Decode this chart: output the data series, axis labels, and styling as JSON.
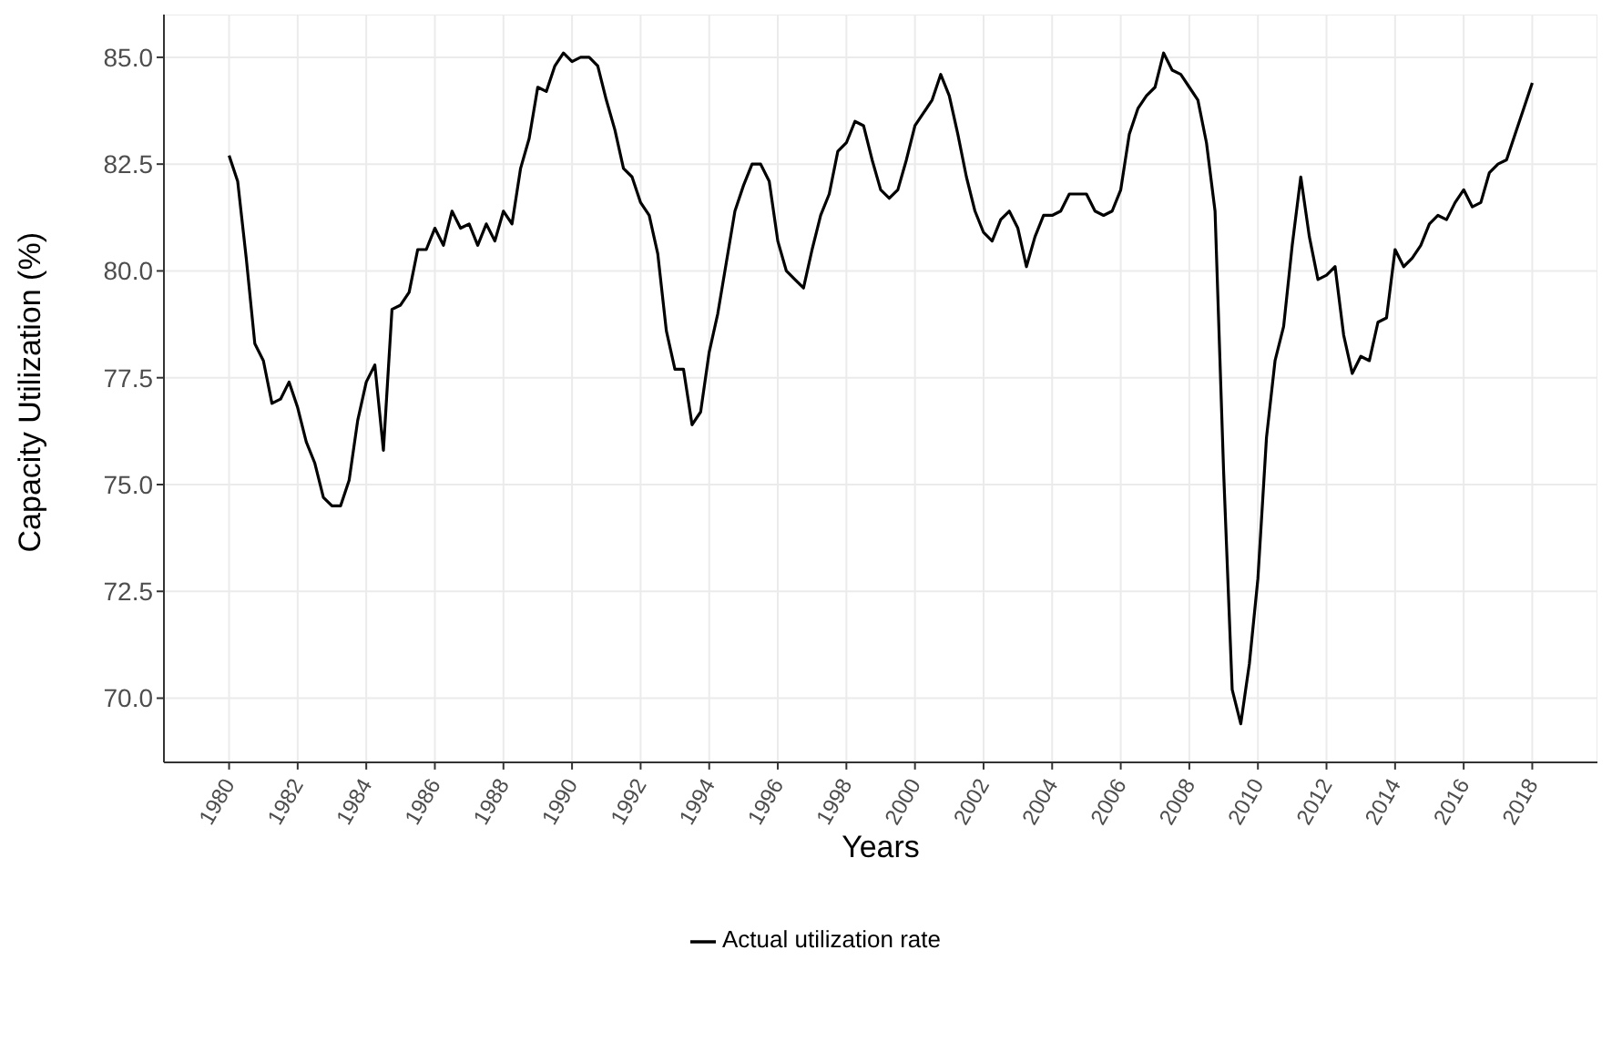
{
  "chart_data": {
    "type": "line",
    "xlabel": "Years",
    "ylabel": "Capacity Utilization (%)",
    "xlim": [
      1978.1,
      2019.9
    ],
    "ylim": [
      68.5,
      86.0
    ],
    "xticks": [
      1980,
      1982,
      1984,
      1986,
      1988,
      1990,
      1992,
      1994,
      1996,
      1998,
      2000,
      2002,
      2004,
      2006,
      2008,
      2010,
      2012,
      2014,
      2016,
      2018
    ],
    "yticks": [
      {
        "value": 70,
        "label": "70.0"
      },
      {
        "value": 72.5,
        "label": "72.5"
      },
      {
        "value": 75,
        "label": "75.0"
      },
      {
        "value": 77.5,
        "label": "77.5"
      },
      {
        "value": 80,
        "label": "80.0"
      },
      {
        "value": 82.5,
        "label": "82.5"
      },
      {
        "value": 85,
        "label": "85.0"
      }
    ],
    "grid": true,
    "legend": "bottom",
    "marker": "none",
    "line_style": "solid",
    "x": [
      1980,
      1980.25,
      1980.5,
      1980.75,
      1981,
      1981.25,
      1981.5,
      1981.75,
      1982,
      1982.25,
      1982.5,
      1982.75,
      1983,
      1983.25,
      1983.5,
      1983.75,
      1984,
      1984.25,
      1984.5,
      1984.75,
      1985,
      1985.25,
      1985.5,
      1985.75,
      1986,
      1986.25,
      1986.5,
      1986.75,
      1987,
      1987.25,
      1987.5,
      1987.75,
      1988,
      1988.25,
      1988.5,
      1988.75,
      1989,
      1989.25,
      1989.5,
      1989.75,
      1990,
      1990.25,
      1990.5,
      1990.75,
      1991,
      1991.25,
      1991.5,
      1991.75,
      1992,
      1992.25,
      1992.5,
      1992.75,
      1993,
      1993.25,
      1993.5,
      1993.75,
      1994,
      1994.25,
      1994.5,
      1994.75,
      1995,
      1995.25,
      1995.5,
      1995.75,
      1996,
      1996.25,
      1996.5,
      1996.75,
      1997,
      1997.25,
      1997.5,
      1997.75,
      1998,
      1998.25,
      1998.5,
      1998.75,
      1999,
      1999.25,
      1999.5,
      1999.75,
      2000,
      2000.25,
      2000.5,
      2000.75,
      2001,
      2001.25,
      2001.5,
      2001.75,
      2002,
      2002.25,
      2002.5,
      2002.75,
      2003,
      2003.25,
      2003.5,
      2003.75,
      2004,
      2004.25,
      2004.5,
      2004.75,
      2005,
      2005.25,
      2005.5,
      2005.75,
      2006,
      2006.25,
      2006.5,
      2006.75,
      2007,
      2007.25,
      2007.5,
      2007.75,
      2008,
      2008.25,
      2008.5,
      2008.75,
      2009,
      2009.25,
      2009.5,
      2009.75,
      2010,
      2010.25,
      2010.5,
      2010.75,
      2011,
      2011.25,
      2011.5,
      2011.75,
      2012,
      2012.25,
      2012.5,
      2012.75,
      2013,
      2013.25,
      2013.5,
      2013.75,
      2014,
      2014.25,
      2014.5,
      2014.75,
      2015,
      2015.25,
      2015.5,
      2015.75,
      2016,
      2016.25,
      2016.5,
      2016.75,
      2017,
      2017.25,
      2017.5,
      2017.75,
      2018
    ],
    "series": [
      {
        "name": "Actual utilization rate",
        "color": "#000000",
        "values": [
          82.7,
          82.1,
          80.3,
          78.3,
          77.9,
          76.9,
          77.0,
          77.4,
          76.8,
          76.0,
          75.5,
          74.7,
          74.5,
          74.5,
          75.1,
          76.5,
          77.4,
          77.8,
          75.8,
          79.1,
          79.2,
          79.5,
          80.5,
          80.5,
          81.0,
          80.6,
          81.4,
          81.0,
          81.1,
          80.6,
          81.1,
          80.7,
          81.4,
          81.1,
          82.4,
          83.1,
          84.3,
          84.2,
          84.8,
          85.1,
          84.9,
          85.0,
          85.0,
          84.8,
          84.0,
          83.3,
          82.4,
          82.2,
          81.6,
          81.3,
          80.4,
          78.6,
          77.7,
          77.7,
          76.4,
          76.7,
          78.1,
          79.0,
          80.2,
          81.4,
          82.0,
          82.5,
          82.5,
          82.1,
          80.7,
          80.0,
          79.8,
          79.6,
          80.5,
          81.3,
          81.8,
          82.8,
          83.0,
          83.5,
          83.4,
          82.6,
          81.9,
          81.7,
          81.9,
          82.6,
          83.4,
          83.7,
          84.0,
          84.6,
          84.1,
          83.2,
          82.2,
          81.4,
          80.9,
          80.7,
          81.2,
          81.4,
          81.0,
          80.1,
          80.8,
          81.3,
          81.3,
          81.4,
          81.8,
          81.8,
          81.8,
          81.4,
          81.3,
          81.4,
          81.9,
          83.2,
          83.8,
          84.1,
          84.3,
          85.1,
          84.7,
          84.6,
          84.3,
          84.0,
          83.0,
          81.4,
          75.3,
          70.2,
          69.4,
          70.8,
          72.8,
          76.1,
          77.9,
          78.7,
          80.6,
          82.2,
          80.8,
          79.8,
          79.9,
          80.1,
          78.5,
          77.6,
          78.0,
          77.9,
          78.8,
          78.9,
          80.5,
          80.1,
          80.3,
          80.6,
          81.1,
          81.3,
          81.2,
          81.6,
          81.9,
          81.5,
          81.6,
          82.3,
          82.5,
          82.6,
          83.2,
          83.8,
          84.4
        ]
      }
    ]
  }
}
